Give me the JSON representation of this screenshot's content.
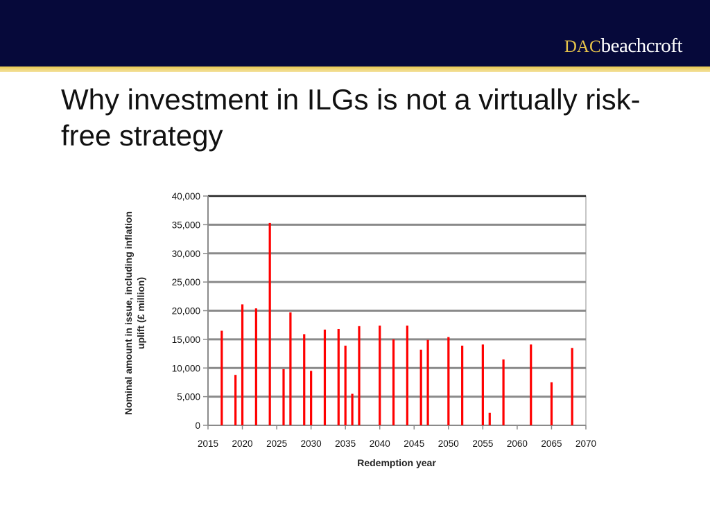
{
  "header": {
    "brand_prefix": "DAC",
    "brand_suffix": "beachcroft"
  },
  "slide": {
    "title": "Why investment in ILGs is not a virtually risk-free strategy"
  },
  "chart_data": {
    "type": "bar",
    "title": "",
    "xlabel": "Redemption year",
    "ylabel": "Nominal amount in issue, including inflation uplift (£ million)",
    "xlim": [
      2015,
      2070
    ],
    "ylim": [
      0,
      40000
    ],
    "x_ticks": [
      2015,
      2020,
      2025,
      2030,
      2035,
      2040,
      2045,
      2050,
      2055,
      2060,
      2065,
      2070
    ],
    "y_ticks": [
      0,
      5000,
      10000,
      15000,
      20000,
      25000,
      30000,
      35000,
      40000
    ],
    "y_tick_labels": [
      "0",
      "5,000",
      "10,000",
      "15,000",
      "20,000",
      "25,000",
      "30,000",
      "35,000",
      "40,000"
    ],
    "grid": true,
    "bar_color": "#ff0000",
    "series": [
      {
        "x": [
          2017,
          2019,
          2020,
          2022,
          2024,
          2026,
          2027,
          2029,
          2030,
          2032,
          2034,
          2035,
          2036,
          2037,
          2040,
          2042,
          2044,
          2046,
          2047,
          2050,
          2052,
          2055,
          2056,
          2058,
          2062,
          2065,
          2068
        ],
        "values": [
          16500,
          8800,
          21100,
          20400,
          35300,
          9800,
          19700,
          15900,
          9500,
          16700,
          16800,
          13900,
          5500,
          17300,
          17400,
          15000,
          17400,
          13200,
          14900,
          15400,
          13900,
          14100,
          2200,
          11500,
          14100,
          7500,
          13500
        ]
      }
    ]
  }
}
